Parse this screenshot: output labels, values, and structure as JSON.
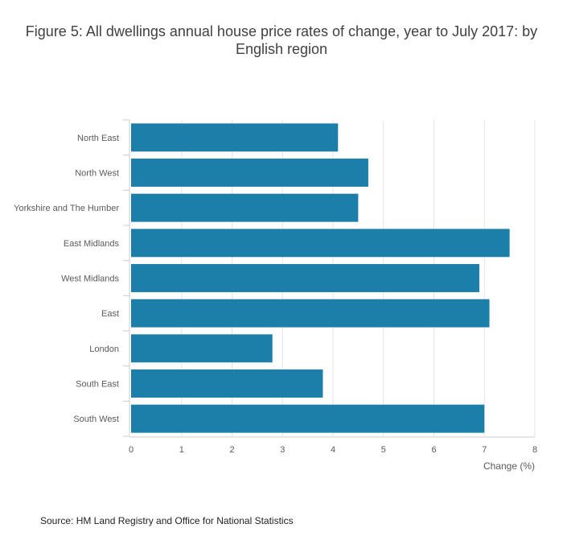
{
  "title": "Figure 5: All dwellings annual house price rates of change, year to July 2017: by English region",
  "source": "Source: HM Land Registry and Office for National Statistics",
  "colors": {
    "bar": "#1b7fa9",
    "grid": "#e3e3e3",
    "axis": "#cccccc",
    "tick_text": "#5a5a5a"
  },
  "chart_data": {
    "type": "bar",
    "orientation": "horizontal",
    "categories": [
      "North East",
      "North West",
      "Yorkshire and The Humber",
      "East Midlands",
      "West Midlands",
      "East",
      "London",
      "South East",
      "South West"
    ],
    "values": [
      4.1,
      4.7,
      4.5,
      7.5,
      6.9,
      7.1,
      2.8,
      3.8,
      7.0
    ],
    "xlabel": "Change (%)",
    "ylabel": "",
    "xlim": [
      0,
      8
    ],
    "xticks": [
      0,
      1,
      2,
      3,
      4,
      5,
      6,
      7,
      8
    ],
    "grid": true
  }
}
